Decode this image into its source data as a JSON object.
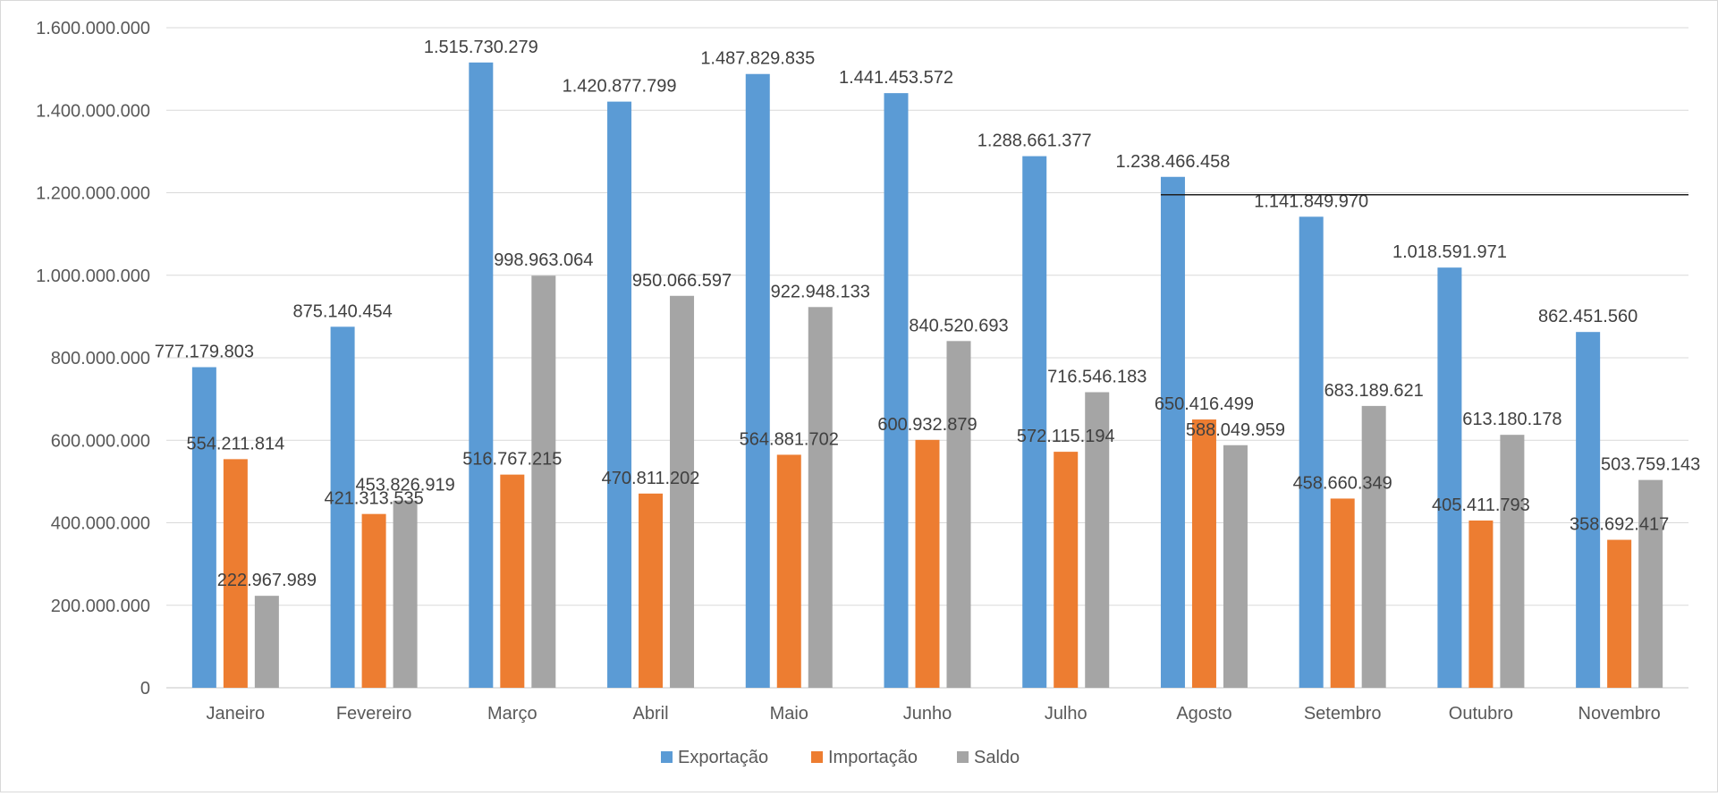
{
  "chart_data": {
    "type": "bar",
    "categories": [
      "Janeiro",
      "Fevereiro",
      "Março",
      "Abril",
      "Maio",
      "Junho",
      "Julho",
      "Agosto",
      "Setembro",
      "Outubro",
      "Novembro"
    ],
    "series": [
      {
        "name": "Exportação",
        "color": "#5b9bd5",
        "values": [
          777179803,
          875140454,
          1515730279,
          1420877799,
          1487829835,
          1441453572,
          1288661377,
          1238466458,
          1141849970,
          1018591971,
          862451560
        ],
        "labels": [
          "777.179.803",
          "875.140.454",
          "1.515.730.279",
          "1.420.877.799",
          "1.487.829.835",
          "1.441.453.572",
          "1.288.661.377",
          "1.238.466.458",
          "1.141.849.970",
          "1.018.591.971",
          "862.451.560"
        ]
      },
      {
        "name": "Importação",
        "color": "#ed7d31",
        "values": [
          554211814,
          421313535,
          516767215,
          470811202,
          564881702,
          600932879,
          572115194,
          650416499,
          458660349,
          405411793,
          358692417
        ],
        "labels": [
          "554.211.814",
          "421.313.535",
          "516.767.215",
          "470.811.202",
          "564.881.702",
          "600.932.879",
          "572.115.194",
          "650.416.499",
          "458.660.349",
          "405.411.793",
          "358.692.417"
        ]
      },
      {
        "name": "Saldo",
        "color": "#a5a5a5",
        "values": [
          222967989,
          453826919,
          998963064,
          950066597,
          922948133,
          840520693,
          716546183,
          588049959,
          683189621,
          613180178,
          503759143
        ],
        "labels": [
          "222.967.989",
          "453.826.919",
          "998.963.064",
          "950.066.597",
          "922.948.133",
          "840.520.693",
          "716.546.183",
          "588.049.959",
          "683.189.621",
          "613.180.178",
          "503.759.143"
        ]
      }
    ],
    "y_ticks": [
      0,
      200000000,
      400000000,
      600000000,
      800000000,
      1000000000,
      1200000000,
      1400000000,
      1600000000
    ],
    "y_tick_labels": [
      "0",
      "200.000.000",
      "400.000.000",
      "600.000.000",
      "800.000.000",
      "1.000.000.000",
      "1.200.000.000",
      "1.400.000.000",
      "1.600.000.000"
    ],
    "ylim": [
      0,
      1600000000
    ],
    "title": "",
    "xlabel": "",
    "ylabel": "",
    "grid": true,
    "legend_position": "bottom",
    "gridline_color": "#d9d9d9",
    "annotation_line_value": 1195000000
  }
}
